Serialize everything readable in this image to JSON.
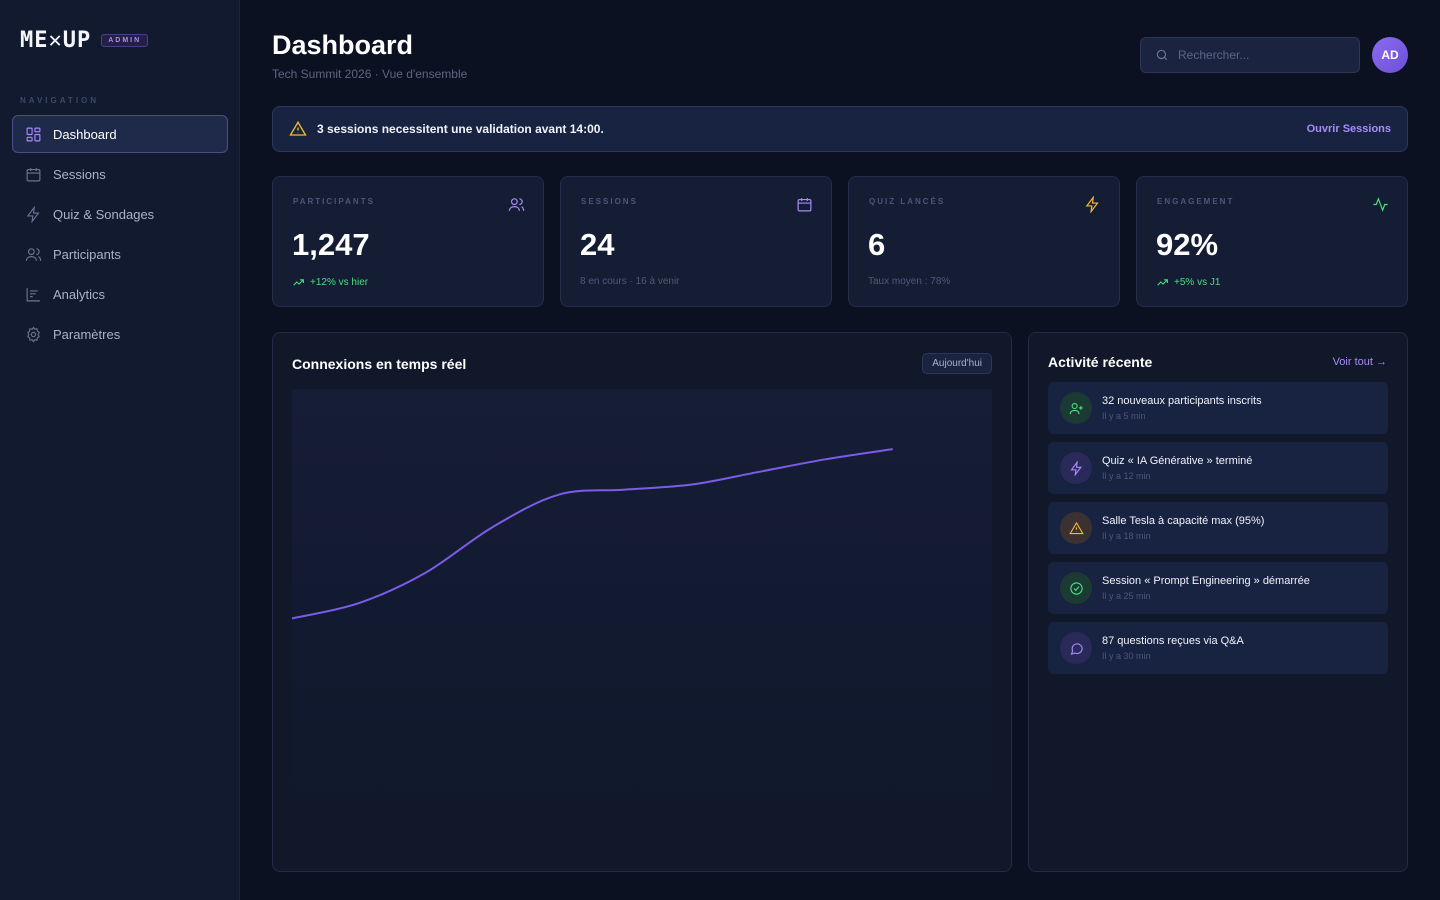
{
  "brand": {
    "logo": "ME✕UP",
    "badge": "ADMIN"
  },
  "sidebar": {
    "section_label": "NAVIGATION",
    "items": [
      {
        "label": "Dashboard",
        "icon": "grid-icon",
        "active": true
      },
      {
        "label": "Sessions",
        "icon": "calendar-icon"
      },
      {
        "label": "Quiz & Sondages",
        "icon": "lightning-icon"
      },
      {
        "label": "Participants",
        "icon": "users-icon"
      },
      {
        "label": "Analytics",
        "icon": "bar-chart-icon"
      },
      {
        "label": "Paramètres",
        "icon": "gear-icon"
      }
    ]
  },
  "header": {
    "title": "Dashboard",
    "subtitle": "Tech Summit 2026 · Vue d'ensemble",
    "search_placeholder": "Rechercher...",
    "avatar_initials": "AD"
  },
  "alert": {
    "text": "3 sessions necessitent une validation avant 14:00.",
    "link": "Ouvrir Sessions"
  },
  "stats": [
    {
      "label": "PARTICIPANTS",
      "value": "1,247",
      "sub": "+12% vs hier",
      "trend": "up",
      "icon": "users-icon",
      "color": "#a88bfa"
    },
    {
      "label": "SESSIONS",
      "value": "24",
      "sub": "8 en cours · 16 à venir",
      "trend": "none",
      "icon": "calendar-icon",
      "color": "#a88bfa"
    },
    {
      "label": "QUIZ LANCÉS",
      "value": "6",
      "sub": "Taux moyen : 78%",
      "trend": "none",
      "icon": "lightning-icon",
      "color": "#f5b544"
    },
    {
      "label": "ENGAGEMENT",
      "value": "92%",
      "sub": "+5% vs J1",
      "trend": "up",
      "icon": "activity-icon",
      "color": "#4ade80"
    }
  ],
  "chart": {
    "title": "Connexions en temps réel",
    "range_label": "Aujourd'hui"
  },
  "chart_data": {
    "type": "line",
    "title": "Connexions en temps réel",
    "xlabel": "",
    "ylabel": "",
    "grid": false,
    "legend": "none",
    "x": [
      0,
      1,
      2,
      3,
      4,
      5,
      6,
      7,
      8,
      9
    ],
    "series": [
      {
        "values": [
          0,
          12,
          36,
          72,
          98,
          102,
          106,
          116,
          126,
          134
        ],
        "color": "#7c5ce6"
      }
    ],
    "ylim": [
      -10,
      150
    ]
  },
  "activity": {
    "title": "Activité récente",
    "link": "Voir tout →",
    "items": [
      {
        "text": "32 nouveaux participants inscrits",
        "time": "Il y a 5 min",
        "icon": "user-plus-icon",
        "color": "#4ade80",
        "bg": "#1c3a34"
      },
      {
        "text": "Quiz « IA Générative » terminé",
        "time": "Il y a 12 min",
        "icon": "lightning-icon",
        "color": "#a88bfa",
        "bg": "#2a2a5a"
      },
      {
        "text": "Salle Tesla à capacité max (95%)",
        "time": "Il y a 18 min",
        "icon": "warning-icon",
        "color": "#f5b544",
        "bg": "#3a3230"
      },
      {
        "text": "Session « Prompt Engineering » démarrée",
        "time": "Il y a 25 min",
        "icon": "check-circle-icon",
        "color": "#4ade80",
        "bg": "#1c3a34"
      },
      {
        "text": "87 questions reçues via Q&A",
        "time": "Il y a 30 min",
        "icon": "chat-icon",
        "color": "#a88bfa",
        "bg": "#2a2a5a"
      }
    ]
  }
}
